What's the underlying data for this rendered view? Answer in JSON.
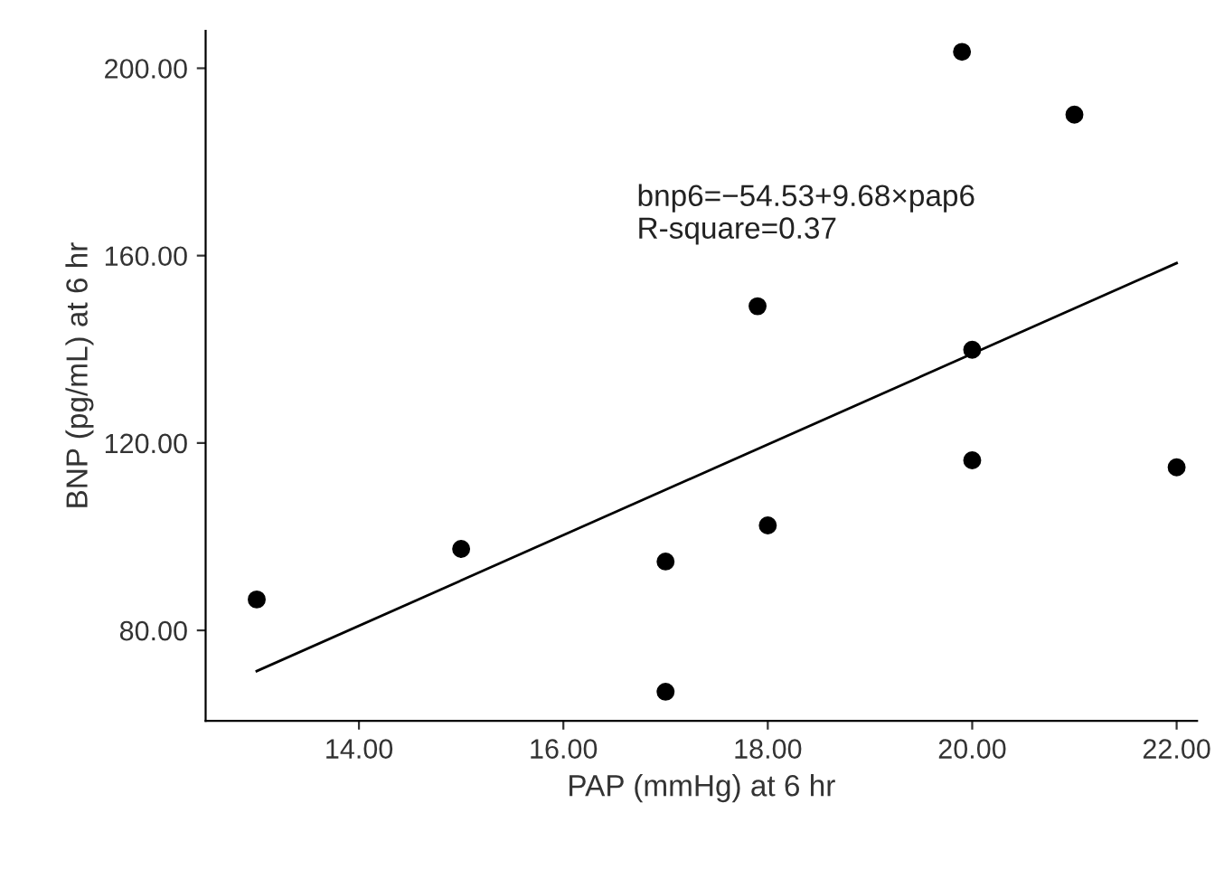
{
  "chart_data": {
    "type": "scatter",
    "xlabel": "PAP (mmHg) at 6 hr",
    "ylabel": "BNP (pg/mL) at 6 hr",
    "xlim": [
      12.5,
      22.2
    ],
    "ylim": [
      60.7,
      208
    ],
    "xticks": [
      {
        "value": 14,
        "label": "14.00"
      },
      {
        "value": 16,
        "label": "16.00"
      },
      {
        "value": 18,
        "label": "18.00"
      },
      {
        "value": 20,
        "label": "20.00"
      },
      {
        "value": 22,
        "label": "22.00"
      }
    ],
    "yticks": [
      {
        "value": 80,
        "label": "80.00"
      },
      {
        "value": 120,
        "label": "120.00"
      },
      {
        "value": 160,
        "label": "160.00"
      },
      {
        "value": 200,
        "label": "200.00"
      }
    ],
    "grid": false,
    "legend": false,
    "marker": "circle",
    "series": [
      {
        "color": "#000000",
        "x": [
          13,
          15,
          17,
          17,
          18,
          17.9,
          20,
          20,
          19.9,
          21,
          22
        ],
        "values": [
          86.6,
          97.4,
          94.7,
          66.9,
          102.4,
          149.2,
          116.3,
          139.9,
          203.5,
          190.1,
          114.8
        ]
      },
      {
        "type": "line",
        "color": "#000000",
        "x": [
          13,
          22
        ],
        "values": [
          71.3,
          158.4
        ],
        "line_style": "solid",
        "marker": "none"
      }
    ],
    "annotations": [
      "bnp6=−54.53+9.68×pap6\nR-square=0.37"
    ]
  }
}
